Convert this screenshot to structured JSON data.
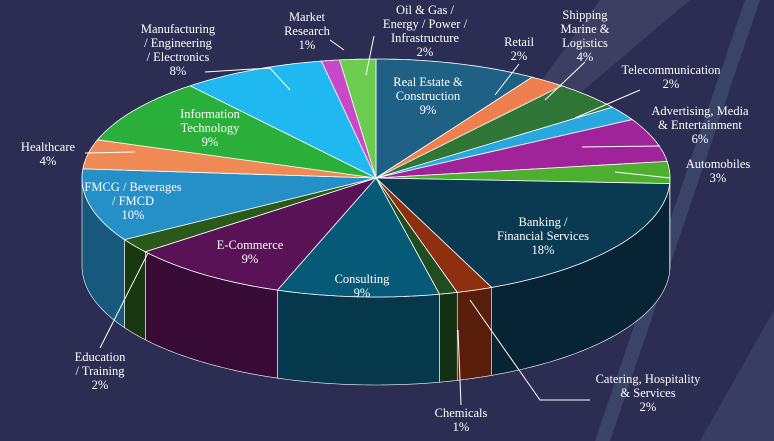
{
  "chart_data": {
    "type": "pie",
    "style": "3d",
    "title": "",
    "legend": "none",
    "background_color": "#2b2e52",
    "slices": [
      {
        "label": "Real Estate &\nConstruction",
        "value": 9,
        "color": "#1e6185"
      },
      {
        "label": "Retail",
        "value": 2,
        "color": "#ef7f4f"
      },
      {
        "label": "Shipping\nMarine &\nLogistics",
        "value": 4,
        "color": "#2f7536"
      },
      {
        "label": "Telecommunication",
        "value": 2,
        "color": "#29a8e0"
      },
      {
        "label": "Advertising, Media\n& Entertainment",
        "value": 6,
        "color": "#a0239a"
      },
      {
        "label": "Automobiles",
        "value": 3,
        "color": "#4caf2e"
      },
      {
        "label": "Banking /\nFinancial Services",
        "value": 18,
        "color": "#0a3a52"
      },
      {
        "label": "Catering, Hospitality\n& Services",
        "value": 2,
        "color": "#8e3010"
      },
      {
        "label": "Chemicals",
        "value": 1,
        "color": "#1f4d1f"
      },
      {
        "label": "Consulting",
        "value": 9,
        "color": "#065a78"
      },
      {
        "label": "E-Commerce",
        "value": 9,
        "color": "#5a1257"
      },
      {
        "label": "Education\n/ Training",
        "value": 2,
        "color": "#2a5a1a"
      },
      {
        "label": "FMCG / Beverages\n/ FMCD",
        "value": 10,
        "color": "#2590c8"
      },
      {
        "label": "Healthcare",
        "value": 4,
        "color": "#ef8a55"
      },
      {
        "label": "Information\nTechnology",
        "value": 9,
        "color": "#2aaf3a"
      },
      {
        "label": "Manufacturing\n/ Engineering\n/ Electronics",
        "value": 8,
        "color": "#1fb8f0"
      },
      {
        "label": "Market\nResearch",
        "value": 1,
        "color": "#c948c8"
      },
      {
        "label": "Oil & Gas /\nEnergy / Power /\nInfrastructure",
        "value": 2,
        "color": "#6ccc50"
      }
    ]
  }
}
